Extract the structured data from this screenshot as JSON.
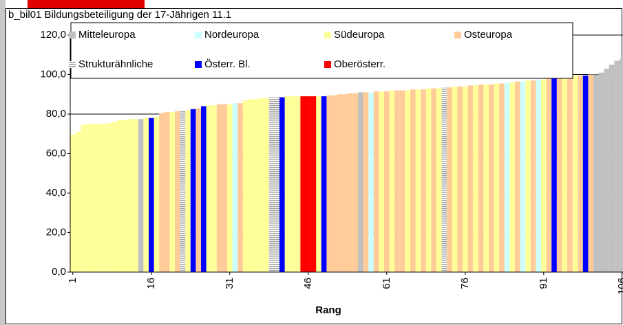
{
  "chart_data": {
    "type": "bar",
    "title": "b_bil01 Bildungsbeteiligung der 17-Jährigen 11.1",
    "x_label": "Rang",
    "xlim": [
      0.5,
      106.5
    ],
    "xticks": [
      1,
      16,
      31,
      46,
      61,
      76,
      91,
      106
    ],
    "ylim": [
      0,
      120
    ],
    "yticks": [
      {
        "value": 0,
        "label": "0,0"
      },
      {
        "value": 20,
        "label": "20,0"
      },
      {
        "value": 40,
        "label": "40,0"
      },
      {
        "value": 60,
        "label": "60,0"
      },
      {
        "value": 80,
        "label": "80,0"
      },
      {
        "value": 100,
        "label": "100,0"
      },
      {
        "value": 120,
        "label": "120,0"
      }
    ],
    "grid": true,
    "legend": "top",
    "series": [
      {
        "name": "Mitteleuropa",
        "color": "#c0c0c0",
        "x": [
          14,
          56,
          101,
          102,
          103,
          104,
          105,
          106
        ],
        "values": [
          77.5,
          91,
          100,
          101,
          103,
          105,
          107,
          108
        ]
      },
      {
        "name": "Nordeuropa",
        "color": "#ccffff",
        "x": [
          32,
          58,
          84,
          87,
          90
        ],
        "values": [
          85.5,
          91,
          96,
          96.5,
          97.5
        ]
      },
      {
        "name": "Südeuropa",
        "color": "#ffff99",
        "x": [
          1,
          2,
          3,
          4,
          5,
          6,
          7,
          8,
          9,
          10,
          11,
          12,
          13,
          15,
          17,
          20,
          23,
          27,
          28,
          31,
          34,
          35,
          36,
          37,
          38,
          42,
          43,
          44,
          48,
          60,
          62,
          65,
          67,
          69,
          71,
          74,
          76,
          78,
          80,
          82,
          85,
          88,
          91,
          95,
          97
        ],
        "values": [
          69.5,
          71,
          74.5,
          75,
          75,
          75,
          75,
          75.5,
          76,
          77,
          77,
          77.5,
          77.5,
          78,
          78.5,
          81,
          82,
          84.5,
          84.5,
          85,
          87,
          87.5,
          87.5,
          88,
          88,
          89,
          89,
          89,
          89,
          91.5,
          92,
          92,
          92.5,
          93,
          93,
          94,
          94,
          94.5,
          95,
          95.5,
          96,
          97,
          97.5,
          99,
          99.5
        ]
      },
      {
        "name": "Osteuropa",
        "color": "#ffcc99",
        "x": [
          18,
          19,
          21,
          25,
          29,
          30,
          33,
          50,
          51,
          52,
          53,
          54,
          55,
          57,
          59,
          61,
          63,
          64,
          66,
          68,
          70,
          73,
          75,
          77,
          79,
          81,
          83,
          86,
          89,
          92,
          94,
          96,
          98,
          100
        ],
        "values": [
          80.5,
          81,
          81.5,
          83,
          85,
          85,
          85.5,
          89.5,
          89.5,
          90,
          90,
          90.5,
          90.5,
          91,
          91.5,
          91.5,
          92,
          92,
          92.5,
          92.5,
          93,
          93.5,
          94,
          94.5,
          95,
          95,
          95.5,
          96.5,
          97,
          98,
          98.5,
          99,
          99.5,
          100
        ]
      },
      {
        "name": "Strukturähnliche",
        "color": "#a0a0a0",
        "hatch": true,
        "x": [
          22,
          39,
          40,
          72
        ],
        "values": [
          81.5,
          88.5,
          88.5,
          93.5
        ]
      },
      {
        "name": "Österr. Bl.",
        "color": "#0000ff",
        "x": [
          16,
          24,
          26,
          41,
          49,
          93,
          99
        ],
        "values": [
          78,
          82.5,
          84,
          88.5,
          89,
          98.5,
          99.5
        ]
      },
      {
        "name": "Oberösterr.",
        "color": "#ff0000",
        "x": [
          45,
          46,
          47
        ],
        "values": [
          89,
          89,
          89
        ]
      }
    ]
  }
}
